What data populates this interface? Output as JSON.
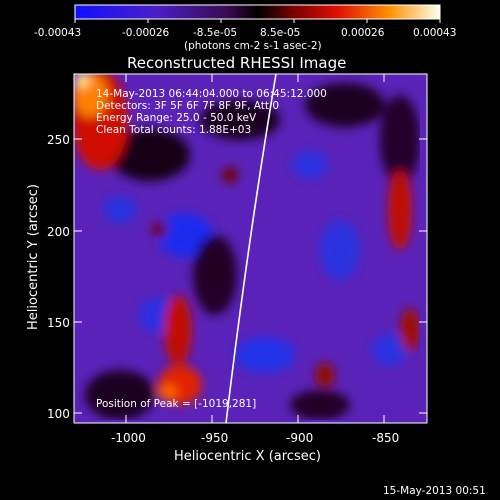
{
  "title": "Reconstructed RHESSI Image",
  "colorbar": {
    "ticks": [
      "-0.00043",
      "-0.00026",
      "-8.5e-05",
      "8.5e-05",
      "0.00026",
      "0.00043"
    ],
    "unit_label": "(photons cm-2 s-1 asec-2)"
  },
  "overlay_lines": [
    "14-May-2013 06:44:04.000 to 06:45:12.000",
    "Detectors: 3F 5F 6F 7F 8F 9F, Att 0",
    "Energy Range: 25.0 - 50.0 keV",
    "Clean    Total counts: 1.88E+03"
  ],
  "peak_label": "Position of Peak = [-1019,281]",
  "x_axis": {
    "label": "Heliocentric X (arcsec)",
    "ticks": [
      "-1000",
      "-950",
      "-900",
      "-850"
    ]
  },
  "y_axis": {
    "label": "Heliocentric Y (arcsec)",
    "ticks": [
      "250",
      "200",
      "150",
      "100"
    ]
  },
  "timestamp": "15-May-2013 00:51",
  "colors": {
    "background": "#000000",
    "limb": "#ffffff",
    "text": "#ffffff"
  }
}
